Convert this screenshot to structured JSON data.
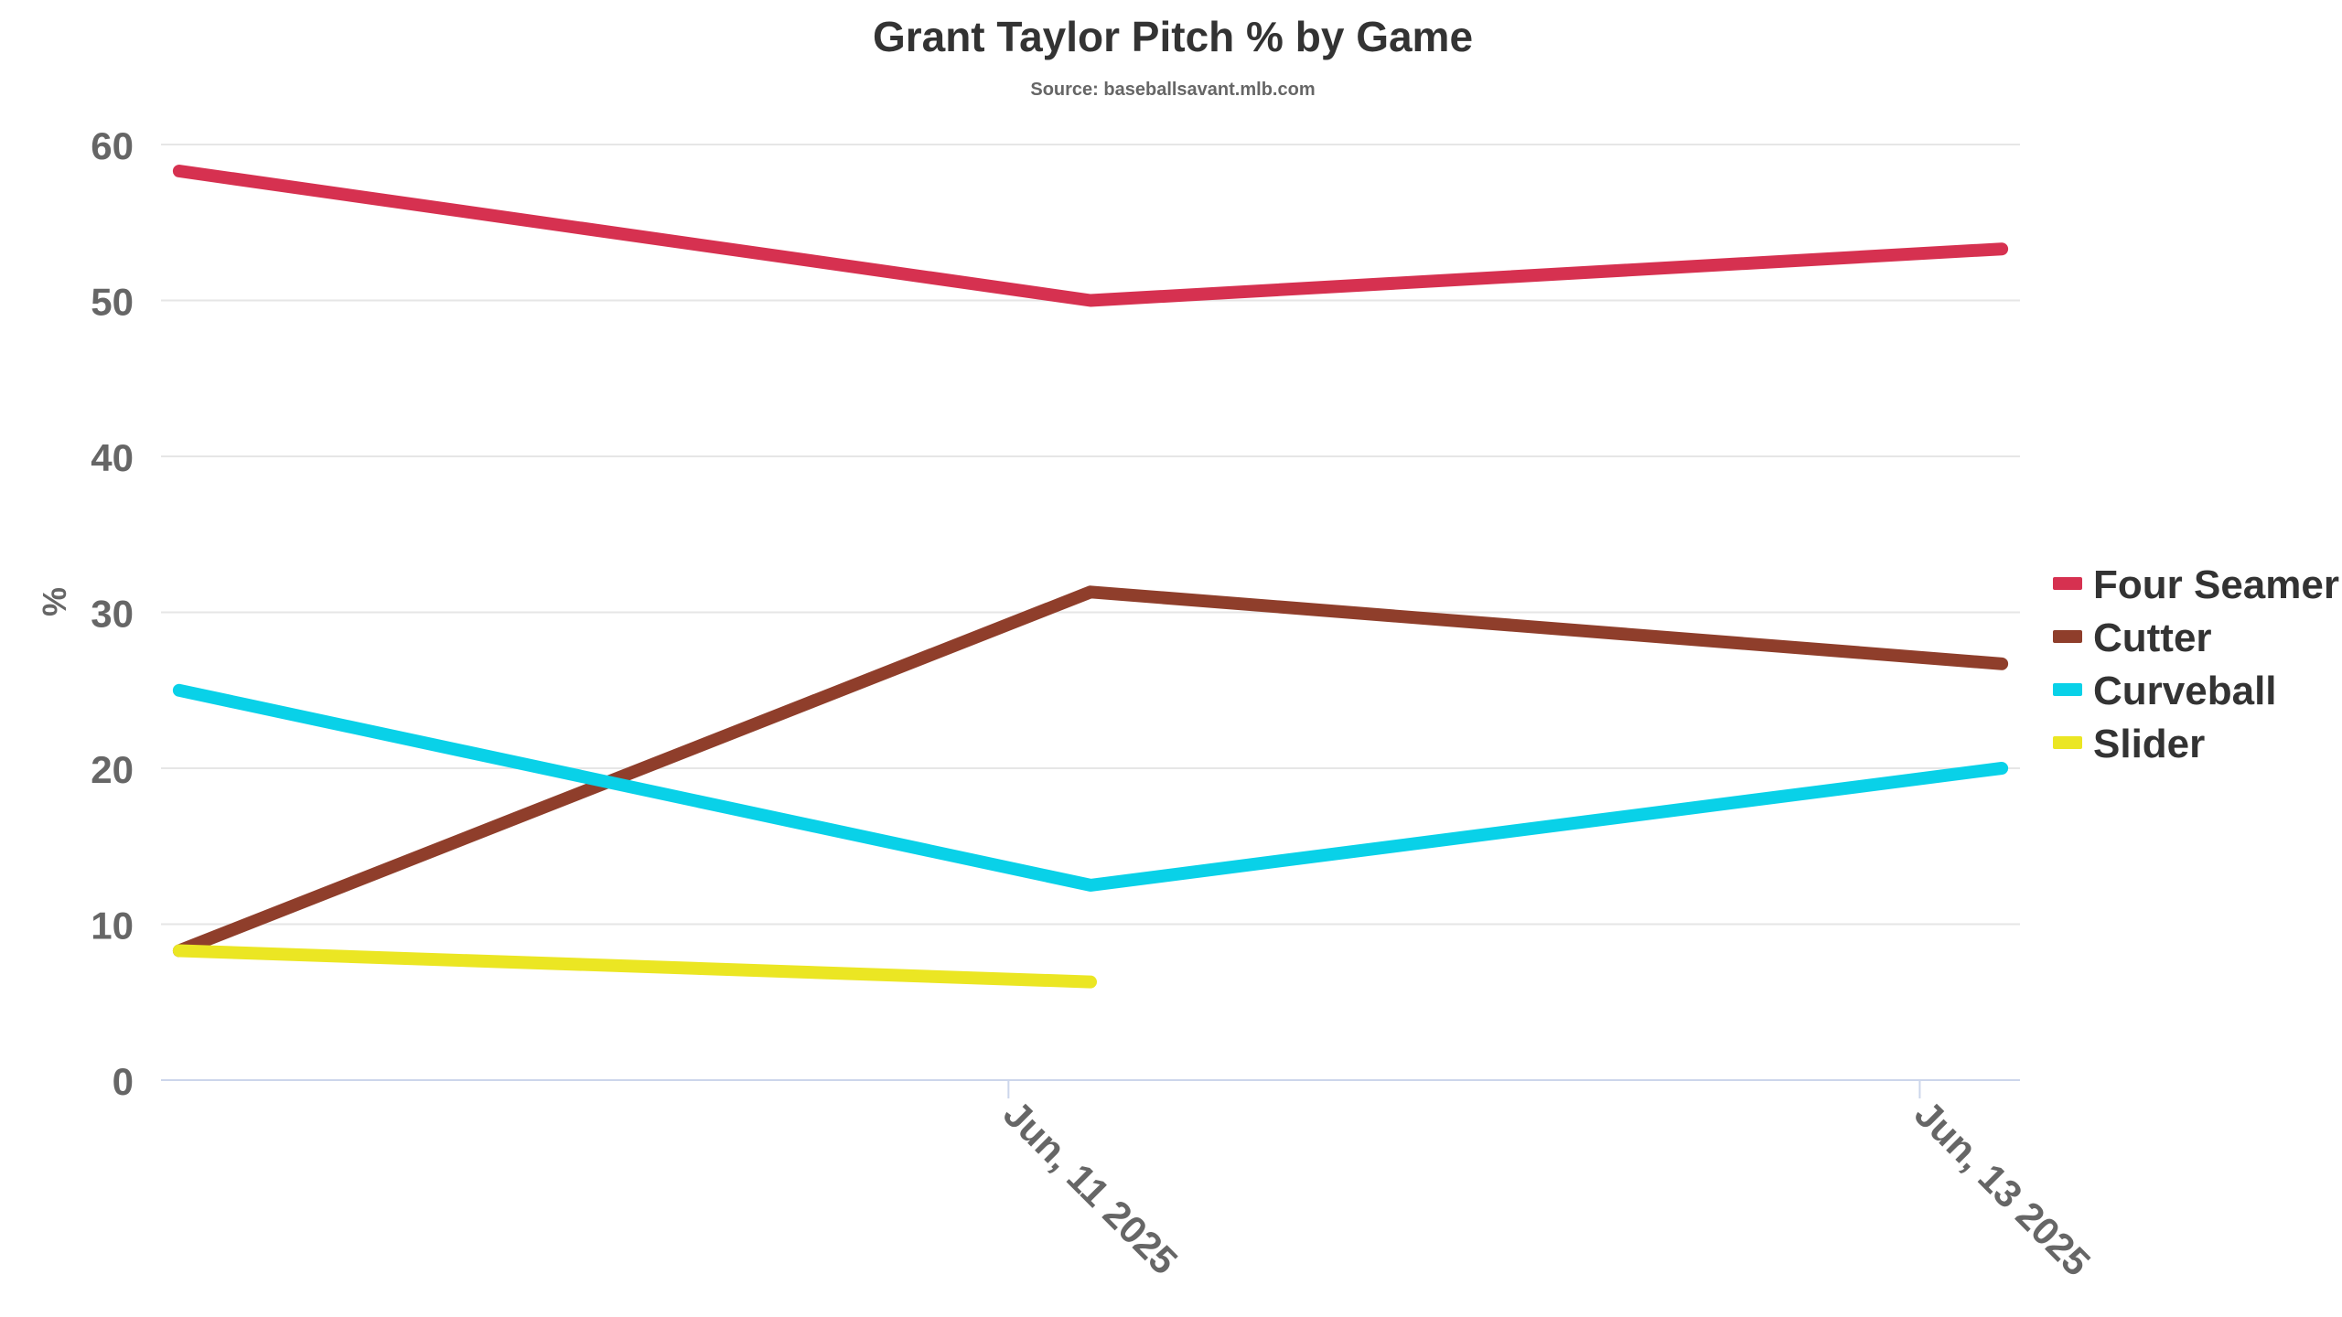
{
  "chart_data": {
    "type": "line",
    "title": "Grant Taylor Pitch % by Game",
    "subtitle": "Source: baseballsavant.mlb.com",
    "xlabel": "",
    "ylabel": "%",
    "x_numeric": [
      0,
      1,
      2
    ],
    "x_tick_labels": [
      {
        "label": "Jun, 11 2025",
        "x": 0.91
      },
      {
        "label": "Jun, 13 2025",
        "x": 1.91
      }
    ],
    "xlim": [
      -0.02,
      2.02
    ],
    "ylim": [
      0,
      60
    ],
    "yticks": [
      0,
      10,
      20,
      30,
      40,
      50,
      60
    ],
    "grid": true,
    "legend_position": "right",
    "series": [
      {
        "name": "Four Seamer",
        "color": "#d63150",
        "values": [
          58.3,
          50.0,
          53.3
        ]
      },
      {
        "name": "Cutter",
        "color": "#8f3e2b",
        "values": [
          8.3,
          31.3,
          26.7
        ]
      },
      {
        "name": "Curveball",
        "color": "#09d1e8",
        "values": [
          25.0,
          12.5,
          20.0
        ]
      },
      {
        "name": "Slider",
        "color": "#ebe623",
        "values": [
          8.3,
          6.3,
          null
        ]
      }
    ]
  }
}
